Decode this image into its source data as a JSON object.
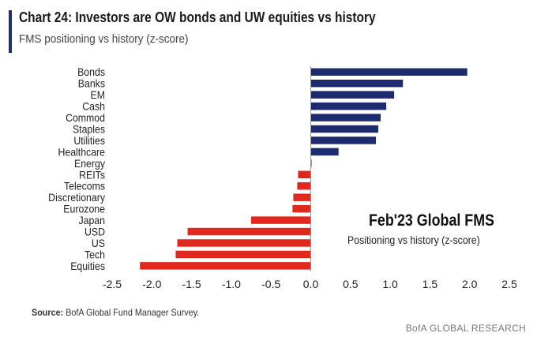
{
  "header": {
    "title": "Chart 24: Investors are OW bonds and UW equities vs history",
    "subtitle": "FMS positioning vs history (z-score)"
  },
  "annotation": {
    "title": "Feb'23 Global FMS",
    "subtitle": "Positioning vs history (z-score)"
  },
  "footer": {
    "source_label": "Source:",
    "source_text": " BofA Global Fund Manager Survey.",
    "brand": "BofA GLOBAL RESEARCH"
  },
  "colors": {
    "positive": "#1c2a6e",
    "negative": "#e0291c",
    "axis": "#999999",
    "title_bar": "#1f2d6b"
  },
  "chart_data": {
    "type": "bar",
    "orientation": "horizontal",
    "title": "Feb'23 Global FMS",
    "subtitle": "Positioning vs history (z-score)",
    "xlabel": "",
    "ylabel": "",
    "xlim": [
      -2.5,
      2.5
    ],
    "xticks": [
      -2.5,
      -2.0,
      -1.5,
      -1.0,
      -0.5,
      0.0,
      0.5,
      1.0,
      1.5,
      2.0,
      2.5
    ],
    "xtick_labels": [
      "-2.5",
      "-2.0",
      "-1.5",
      "-1.0",
      "-0.5",
      "0.0",
      "0.5",
      "1.0",
      "1.5",
      "2.0",
      "2.5"
    ],
    "categories": [
      "Bonds",
      "Banks",
      "EM",
      "Cash",
      "Commod",
      "Staples",
      "Utilities",
      "Healthcare",
      "Energy",
      "REITs",
      "Telecoms",
      "Discretionary",
      "Eurozone",
      "Japan",
      "USD",
      "US",
      "Tech",
      "Equities"
    ],
    "values": [
      1.97,
      1.16,
      1.05,
      0.95,
      0.88,
      0.85,
      0.82,
      0.35,
      0.01,
      -0.16,
      -0.17,
      -0.22,
      -0.23,
      -0.75,
      -1.55,
      -1.68,
      -1.7,
      -2.15
    ],
    "grid": false
  }
}
